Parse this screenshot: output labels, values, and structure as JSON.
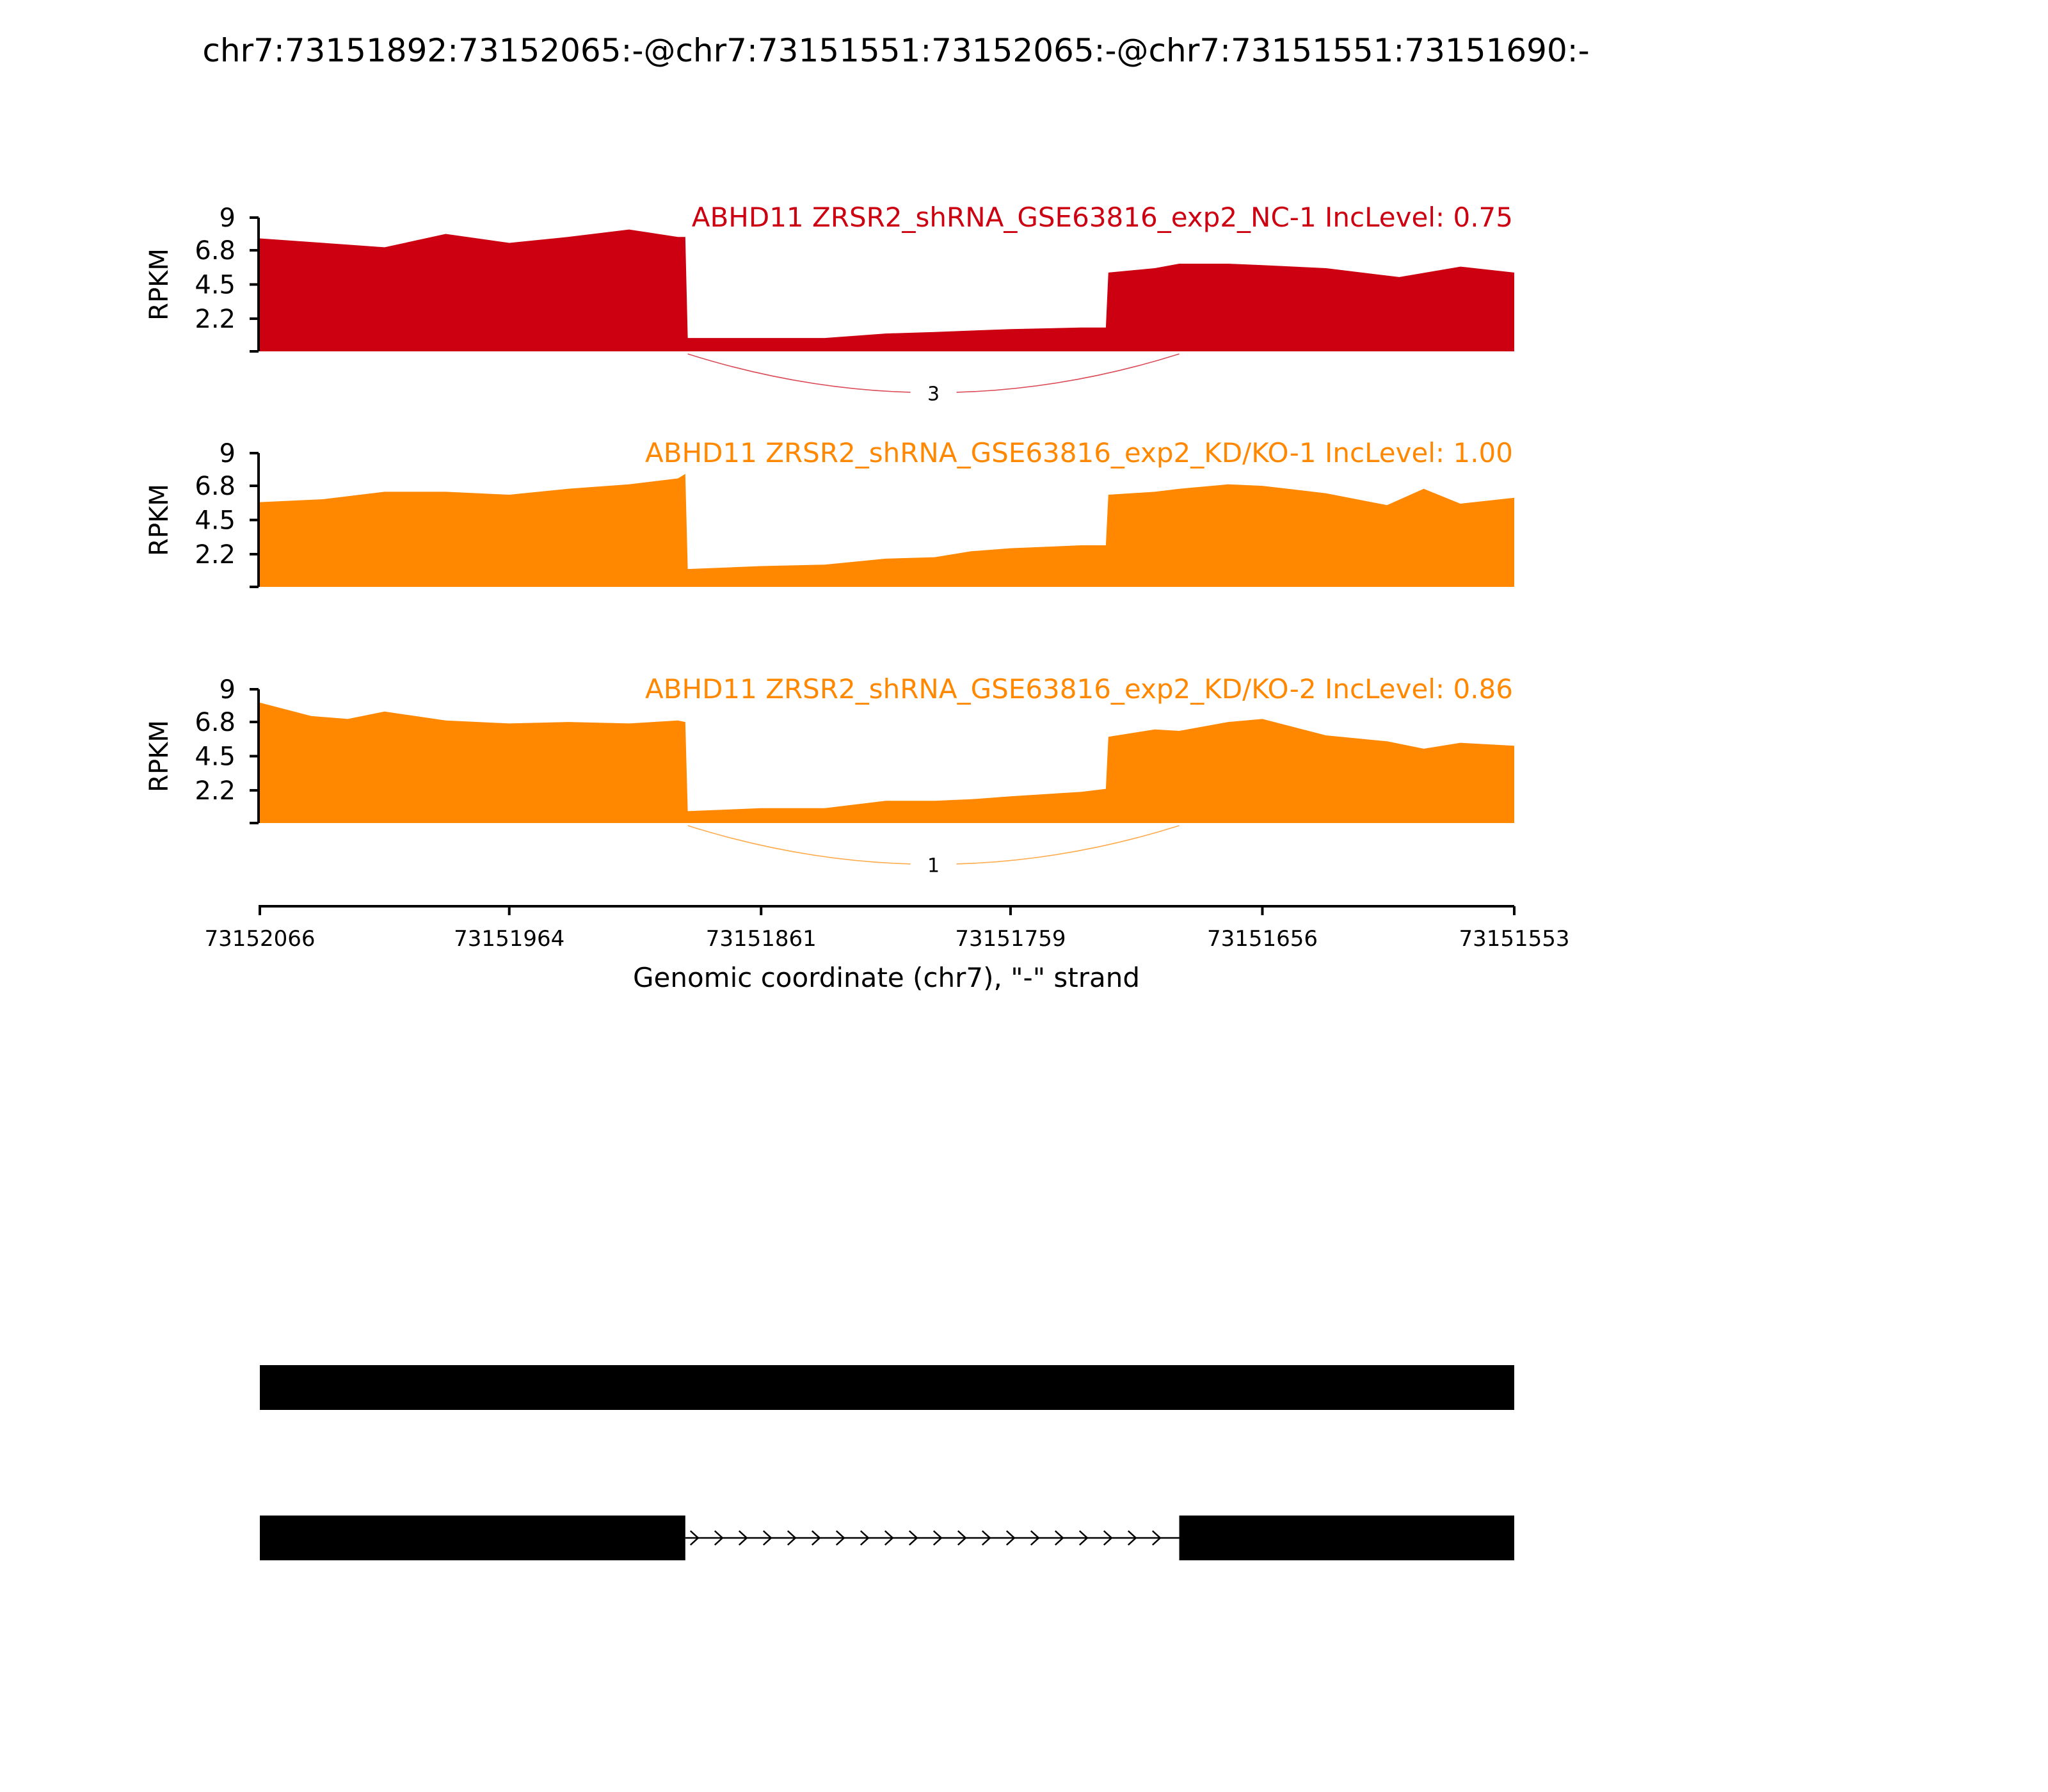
{
  "chart_data": {
    "type": "area",
    "title": "chr7:73151892:73152065:-@chr7:73151551:73152065:-@chr7:73151551:73151690:-",
    "xlabel": "Genomic coordinate (chr7), \"-\" strand",
    "ylabel": "RPKM",
    "x_reversed": true,
    "xlim": [
      73152066,
      73151553
    ],
    "x_ticks": [
      "73152066",
      "73151964",
      "73151861",
      "73151759",
      "73151656",
      "73151553"
    ],
    "ylim": [
      0,
      9
    ],
    "y_ticks": [
      "9",
      "6.8",
      "4.5",
      "2.2"
    ],
    "tracks": [
      {
        "label": "ABHD11 ZRSR2_shRNA_GSE63816_exp2_NC-1 IncLevel: 0.75",
        "color": "#cc0011",
        "x": [
          73152066,
          73152040,
          73152015,
          73151990,
          73151964,
          73151940,
          73151915,
          73151895,
          73151892,
          73151891,
          73151861,
          73151835,
          73151810,
          73151790,
          73151775,
          73151759,
          73151730,
          73151720,
          73151719,
          73151700,
          73151690,
          73151670,
          73151656,
          73151630,
          73151600,
          73151575,
          73151553
        ],
        "y": [
          7.6,
          7.3,
          7.0,
          7.9,
          7.3,
          7.7,
          8.2,
          7.7,
          7.7,
          0.9,
          0.9,
          0.9,
          1.2,
          1.3,
          1.4,
          1.5,
          1.6,
          1.6,
          5.3,
          5.6,
          5.9,
          5.9,
          5.8,
          5.6,
          5.0,
          5.7,
          5.3
        ],
        "junctions": [
          {
            "count": "3",
            "from": 73151891,
            "to": 73151690
          }
        ]
      },
      {
        "label": "ABHD11 ZRSR2_shRNA_GSE63816_exp2_KD/KO-1 IncLevel: 1.00",
        "color": "#ff8800",
        "x": [
          73152066,
          73152040,
          73152015,
          73151990,
          73151964,
          73151940,
          73151915,
          73151895,
          73151892,
          73151891,
          73151861,
          73151835,
          73151810,
          73151790,
          73151775,
          73151759,
          73151730,
          73151720,
          73151719,
          73151700,
          73151690,
          73151670,
          73151656,
          73151630,
          73151605,
          73151590,
          73151575,
          73151553
        ],
        "y": [
          5.7,
          5.9,
          6.4,
          6.4,
          6.2,
          6.6,
          6.9,
          7.3,
          7.6,
          1.2,
          1.4,
          1.5,
          1.9,
          2.0,
          2.4,
          2.6,
          2.8,
          2.8,
          6.2,
          6.4,
          6.6,
          6.9,
          6.8,
          6.3,
          5.5,
          6.6,
          5.6,
          6.0
        ],
        "junctions": []
      },
      {
        "label": "ABHD11 ZRSR2_shRNA_GSE63816_exp2_KD/KO-2 IncLevel: 0.86",
        "color": "#ff8800",
        "x": [
          73152066,
          73152045,
          73152030,
          73152015,
          73151990,
          73151964,
          73151940,
          73151915,
          73151895,
          73151892,
          73151891,
          73151861,
          73151835,
          73151810,
          73151790,
          73151775,
          73151759,
          73151730,
          73151720,
          73151719,
          73151700,
          73151690,
          73151670,
          73151656,
          73151630,
          73151605,
          73151590,
          73151575,
          73151553
        ],
        "y": [
          8.1,
          7.2,
          7.0,
          7.5,
          6.9,
          6.7,
          6.8,
          6.7,
          6.9,
          6.8,
          0.8,
          1.0,
          1.0,
          1.5,
          1.5,
          1.6,
          1.8,
          2.1,
          2.3,
          5.8,
          6.3,
          6.2,
          6.8,
          7.0,
          5.9,
          5.5,
          5.0,
          5.4,
          5.2
        ],
        "junctions": [
          {
            "count": "1",
            "from": 73151891,
            "to": 73151690
          }
        ]
      }
    ],
    "gene_models": [
      {
        "exons": [
          [
            73152066,
            73151553
          ]
        ],
        "introns": []
      },
      {
        "exons": [
          [
            73152066,
            73151892
          ],
          [
            73151690,
            73151553
          ]
        ],
        "introns": [
          [
            73151892,
            73151690
          ]
        ]
      }
    ]
  },
  "colors": {
    "exon": "#000000",
    "axis": "#000000"
  }
}
